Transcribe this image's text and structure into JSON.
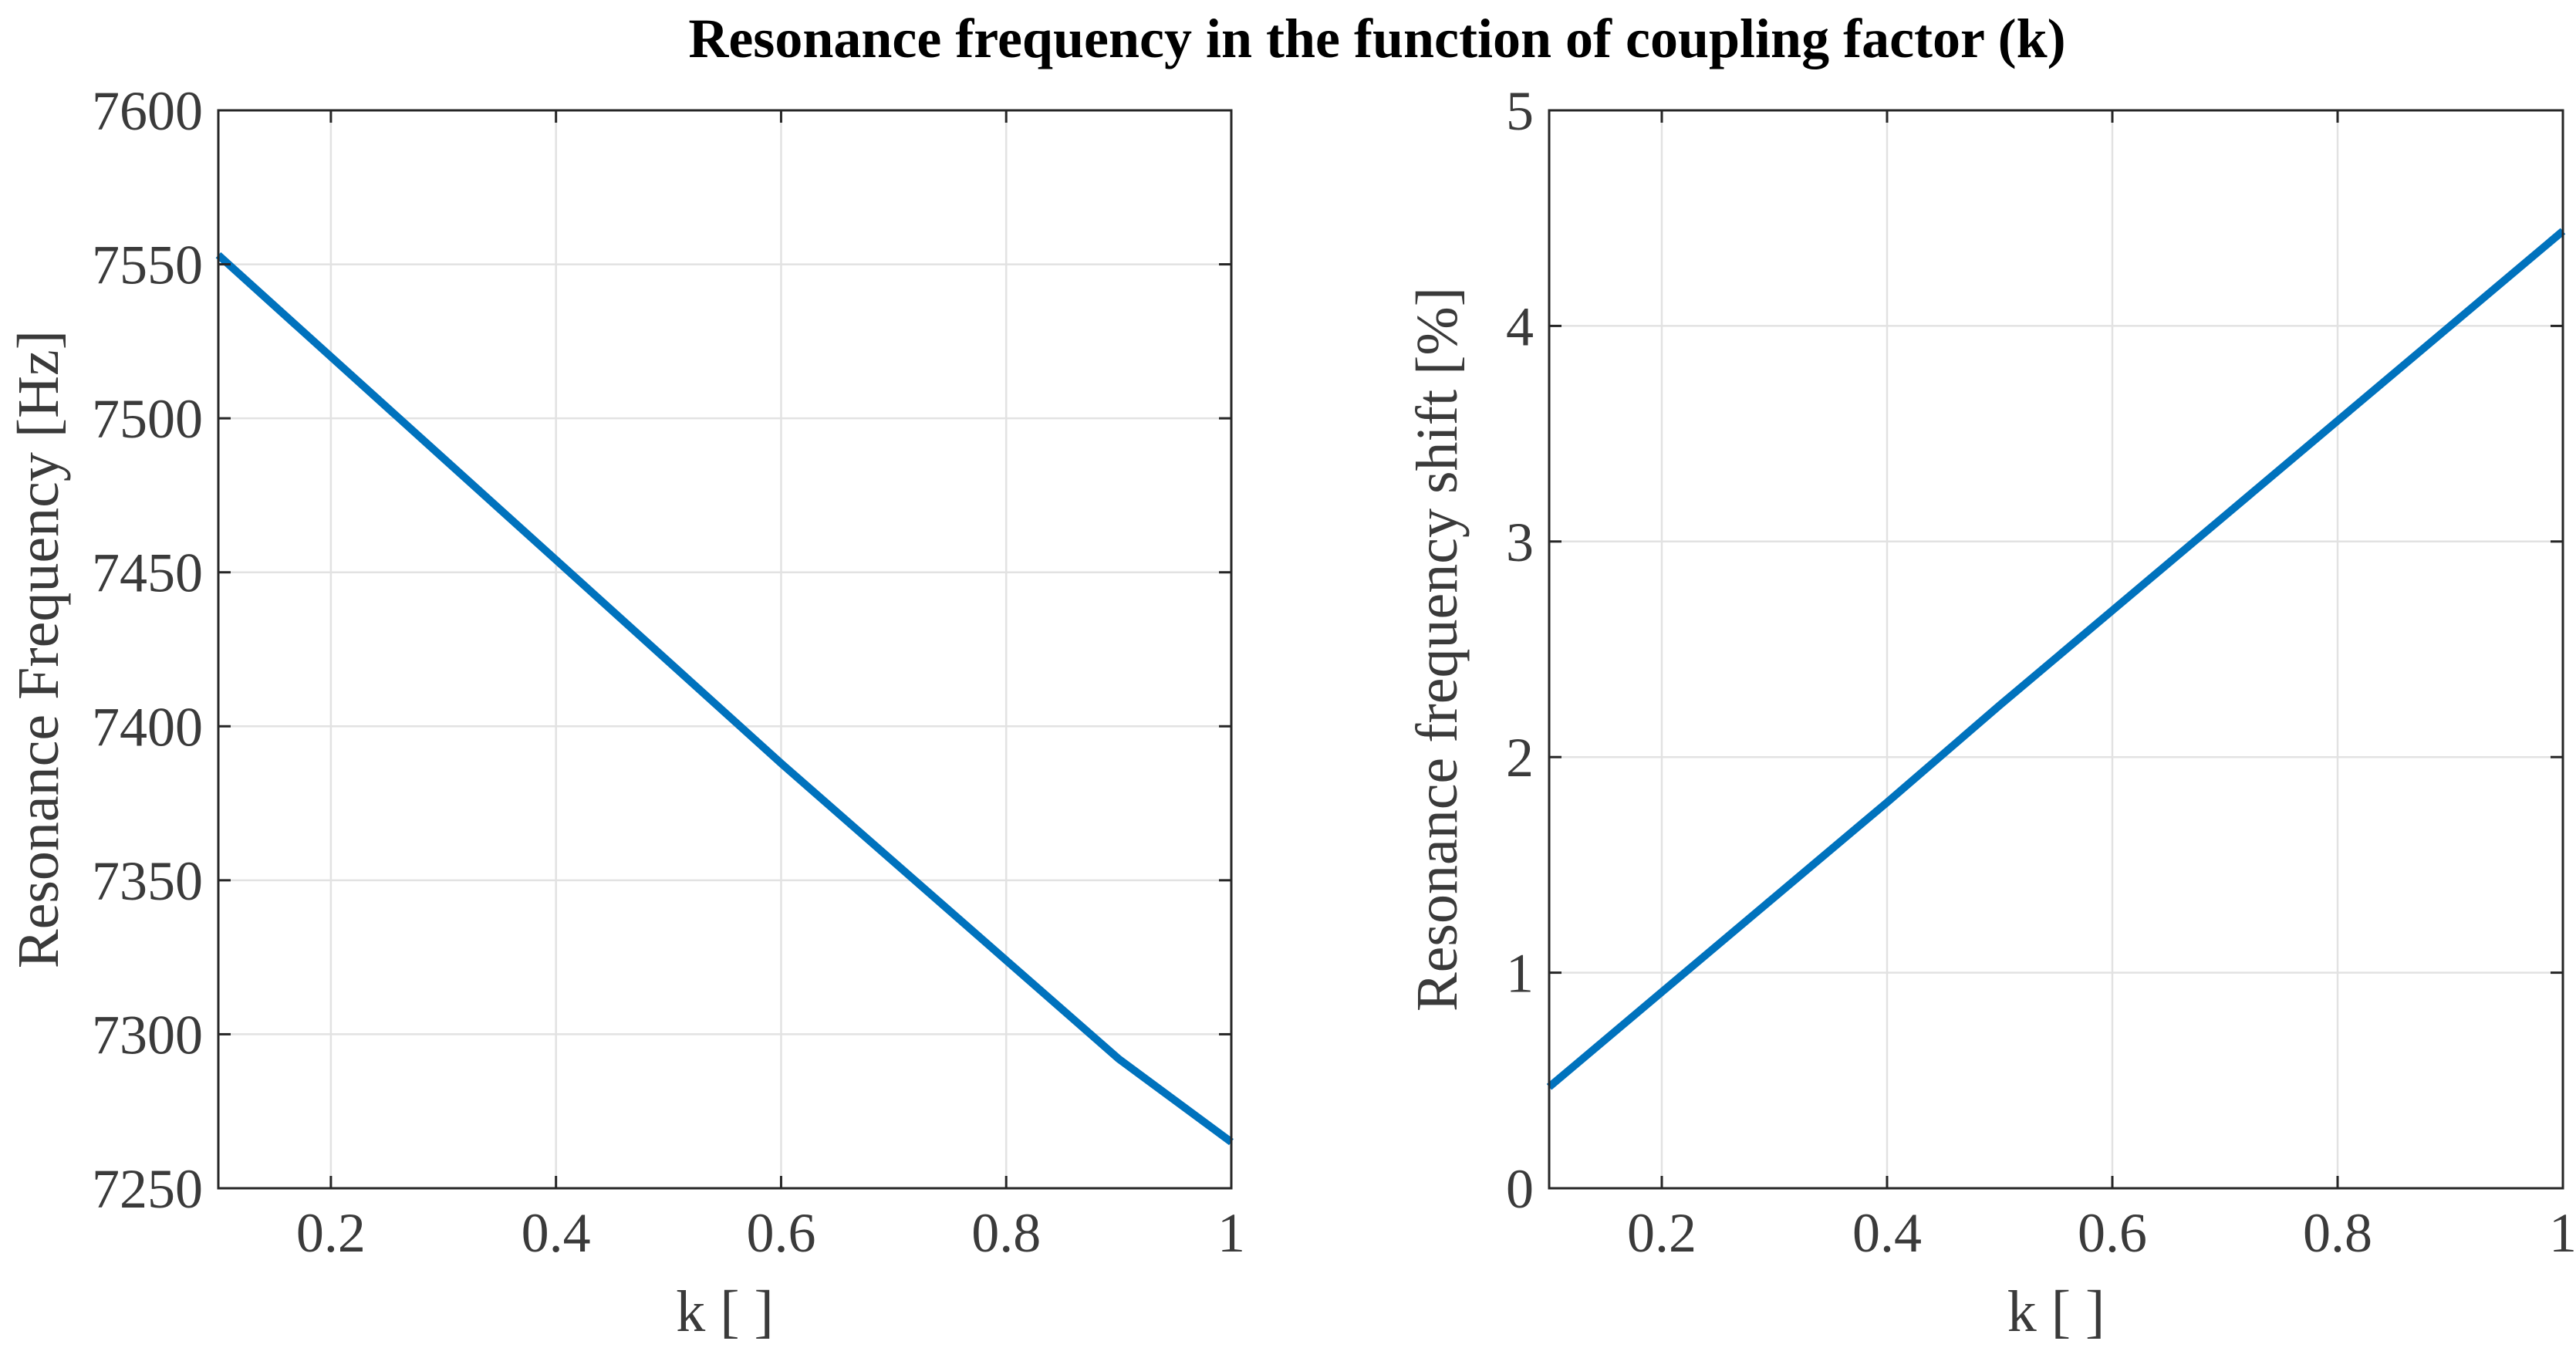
{
  "title": "Resonance frequency in the function of coupling factor (k)",
  "chart_data": [
    {
      "type": "line",
      "xlabel": "k [ ]",
      "ylabel": "Resonance Frequency [Hz]",
      "xlim": [
        0.1,
        1
      ],
      "ylim": [
        7250,
        7600
      ],
      "xticks": [
        0.2,
        0.4,
        0.6,
        0.8,
        1
      ],
      "xtick_labels": [
        "0.2",
        "0.4",
        "0.6",
        "0.8",
        "1"
      ],
      "yticks": [
        7250,
        7300,
        7350,
        7400,
        7450,
        7500,
        7550,
        7600
      ],
      "ytick_labels": [
        "7250",
        "7300",
        "7350",
        "7400",
        "7450",
        "7500",
        "7550",
        "7600"
      ],
      "grid": true,
      "series": [
        {
          "name": "Resonance Frequency",
          "color": "#0072BD",
          "x": [
            0.1,
            0.2,
            0.3,
            0.4,
            0.5,
            0.6,
            0.7,
            0.8,
            0.9,
            1.0
          ],
          "y": [
            7553,
            7520,
            7487,
            7454,
            7421,
            7388,
            7356,
            7324,
            7292,
            7265
          ]
        }
      ]
    },
    {
      "type": "line",
      "xlabel": "k [ ]",
      "ylabel": "Resonance frequency shift [%]",
      "xlim": [
        0.1,
        1
      ],
      "ylim": [
        0,
        5
      ],
      "xticks": [
        0.2,
        0.4,
        0.6,
        0.8,
        1
      ],
      "xtick_labels": [
        "0.2",
        "0.4",
        "0.6",
        "0.8",
        "1"
      ],
      "yticks": [
        0,
        1,
        2,
        3,
        4,
        5
      ],
      "ytick_labels": [
        "0",
        "1",
        "2",
        "3",
        "4",
        "5"
      ],
      "grid": true,
      "series": [
        {
          "name": "Resonance frequency shift",
          "color": "#0072BD",
          "x": [
            0.1,
            0.2,
            0.3,
            0.4,
            0.5,
            0.6,
            0.7,
            0.8,
            0.9,
            1.0
          ],
          "y": [
            0.47,
            0.91,
            1.35,
            1.79,
            2.24,
            2.68,
            3.12,
            3.56,
            4.0,
            4.44
          ]
        }
      ]
    }
  ]
}
